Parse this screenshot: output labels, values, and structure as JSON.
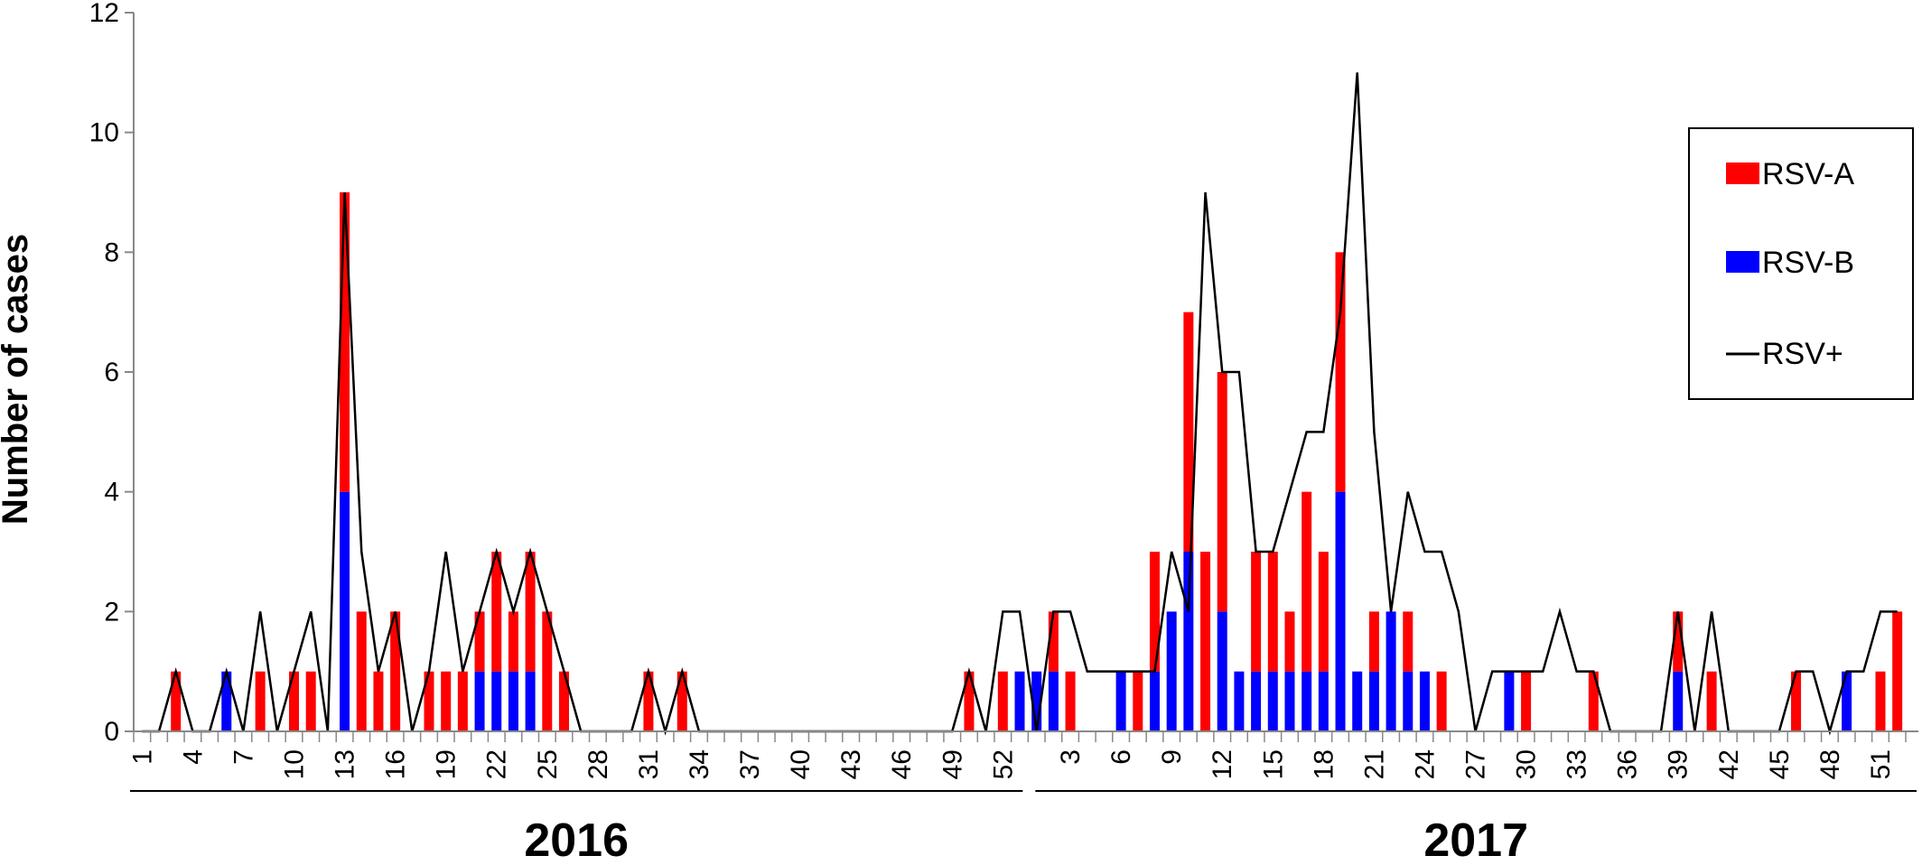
{
  "chart_data": {
    "type": "bar",
    "ylabel": "Number of cases",
    "xlabel": "",
    "ylim": [
      0,
      12
    ],
    "yticks": [
      0,
      2,
      4,
      6,
      8,
      10,
      12
    ],
    "stacked": true,
    "legend_position": "top-right",
    "colors": {
      "rsv_a": "#ff0000",
      "rsv_b": "#0000ff",
      "rsv_total": "#000000"
    },
    "years": [
      {
        "label": "2016",
        "weeks": 53,
        "tick_every": 3
      },
      {
        "label": "2017",
        "weeks": 52,
        "tick_every": 3
      }
    ],
    "series": [
      {
        "name": "RSV-A",
        "kind": "bar",
        "values_2016": [
          0,
          0,
          1,
          0,
          0,
          0,
          0,
          1,
          0,
          1,
          1,
          0,
          5,
          2,
          1,
          2,
          0,
          1,
          1,
          1,
          1,
          2,
          1,
          2,
          2,
          1,
          0,
          0,
          0,
          0,
          1,
          0,
          1,
          0,
          0,
          0,
          0,
          0,
          0,
          0,
          0,
          0,
          0,
          0,
          0,
          0,
          0,
          0,
          0,
          1,
          0,
          1,
          0
        ],
        "values_2017": [
          0,
          1,
          1,
          0,
          0,
          0,
          1,
          2,
          0,
          4,
          3,
          4,
          0,
          2,
          2,
          1,
          3,
          2,
          4,
          0,
          1,
          0,
          1,
          0,
          1,
          0,
          0,
          0,
          0,
          1,
          0,
          0,
          0,
          1,
          0,
          0,
          0,
          0,
          1,
          0,
          1,
          0,
          0,
          0,
          0,
          1,
          0,
          0,
          0,
          0,
          1,
          2
        ]
      },
      {
        "name": "RSV-B",
        "kind": "bar",
        "values_2016": [
          0,
          0,
          0,
          0,
          0,
          1,
          0,
          0,
          0,
          0,
          0,
          0,
          4,
          0,
          0,
          0,
          0,
          0,
          0,
          0,
          1,
          1,
          1,
          1,
          0,
          0,
          0,
          0,
          0,
          0,
          0,
          0,
          0,
          0,
          0,
          0,
          0,
          0,
          0,
          0,
          0,
          0,
          0,
          0,
          0,
          0,
          0,
          0,
          0,
          0,
          0,
          0,
          1
        ],
        "values_2017": [
          1,
          1,
          0,
          0,
          0,
          1,
          0,
          1,
          2,
          3,
          0,
          2,
          1,
          1,
          1,
          1,
          1,
          1,
          4,
          1,
          1,
          2,
          1,
          1,
          0,
          0,
          0,
          0,
          1,
          0,
          0,
          0,
          0,
          0,
          0,
          0,
          0,
          0,
          1,
          0,
          0,
          0,
          0,
          0,
          0,
          0,
          0,
          0,
          1,
          0,
          0,
          0
        ]
      },
      {
        "name": "RSV+",
        "kind": "line",
        "values_2016": [
          0,
          0,
          1,
          0,
          0,
          1,
          0,
          2,
          0,
          1,
          2,
          0,
          9,
          3,
          1,
          2,
          0,
          1,
          3,
          1,
          2,
          3,
          2,
          3,
          2,
          1,
          0,
          0,
          0,
          0,
          1,
          0,
          1,
          0,
          0,
          0,
          0,
          0,
          0,
          0,
          0,
          0,
          0,
          0,
          0,
          0,
          0,
          0,
          0,
          1,
          0,
          2,
          2
        ],
        "values_2017": [
          0,
          2,
          2,
          1,
          1,
          1,
          1,
          1,
          3,
          2,
          9,
          6,
          6,
          3,
          3,
          4,
          5,
          5,
          7,
          11,
          5,
          2,
          4,
          3,
          3,
          2,
          0,
          1,
          1,
          1,
          1,
          2,
          1,
          1,
          0,
          0,
          0,
          0,
          2,
          0,
          2,
          0,
          0,
          0,
          0,
          1,
          1,
          0,
          1,
          1,
          2,
          2
        ]
      }
    ],
    "x_tick_labels_2016": [
      "1",
      "4",
      "7",
      "10",
      "13",
      "16",
      "19",
      "22",
      "25",
      "28",
      "31",
      "34",
      "37",
      "40",
      "43",
      "46",
      "49",
      "52"
    ],
    "x_tick_labels_2017": [
      "3",
      "6",
      "9",
      "12",
      "15",
      "18",
      "21",
      "24",
      "27",
      "30",
      "33",
      "36",
      "39",
      "42",
      "45",
      "48",
      "51"
    ]
  }
}
